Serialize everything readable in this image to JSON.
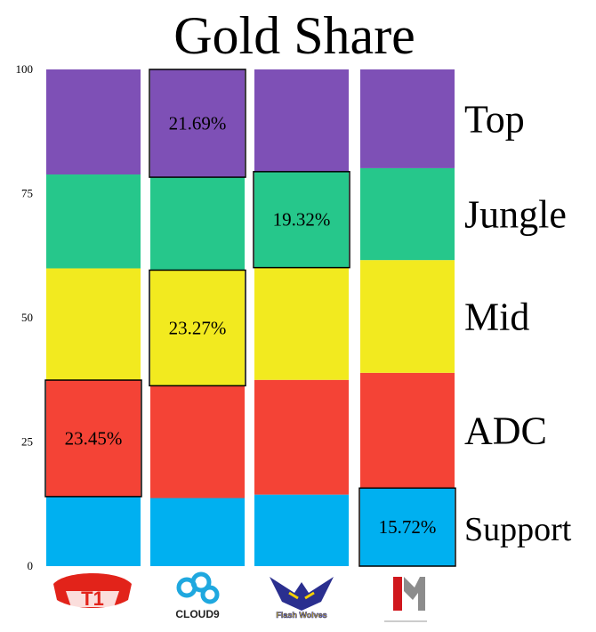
{
  "chart_data": {
    "type": "bar",
    "stacked": true,
    "title": "Gold Share",
    "ylim": [
      0,
      100
    ],
    "yticks": [
      "100",
      "75",
      "50",
      "25",
      "0"
    ],
    "categories": [
      "SKT T1",
      "Cloud9",
      "Flash Wolves",
      "I May"
    ],
    "series": [
      {
        "name": "Support",
        "color": "#00b0f0",
        "values": [
          14.0,
          13.7,
          14.4,
          15.72
        ]
      },
      {
        "name": "ADC",
        "color": "#f44336",
        "values": [
          23.45,
          22.6,
          23.1,
          23.2
        ]
      },
      {
        "name": "Mid",
        "color": "#f2ea1f",
        "values": [
          22.5,
          23.27,
          22.6,
          22.7
        ]
      },
      {
        "name": "Jungle",
        "color": "#26c78b",
        "values": [
          18.9,
          18.7,
          19.32,
          18.5
        ]
      },
      {
        "name": "Top",
        "color": "#7e50b6",
        "values": [
          21.15,
          21.69,
          20.58,
          19.88
        ]
      }
    ],
    "highlights": [
      {
        "category_index": 0,
        "series": "ADC",
        "label": "23.45%"
      },
      {
        "category_index": 1,
        "series": "Top",
        "label": "21.69%"
      },
      {
        "category_index": 1,
        "series": "Mid",
        "label": "23.27%"
      },
      {
        "category_index": 2,
        "series": "Jungle",
        "label": "19.32%"
      },
      {
        "category_index": 3,
        "series": "Support",
        "label": "15.72%"
      }
    ],
    "legend_placement": "right",
    "grid": false
  },
  "logos": [
    {
      "team": "SKT T1",
      "text": "T1",
      "icon": "skt-t1-logo"
    },
    {
      "team": "Cloud9",
      "text": "CLOUD9",
      "icon": "cloud9-logo"
    },
    {
      "team": "Flash Wolves",
      "text": "Flash Wolves",
      "icon": "flash-wolves-logo"
    },
    {
      "team": "I May",
      "text": "",
      "icon": "imay-logo"
    }
  ]
}
